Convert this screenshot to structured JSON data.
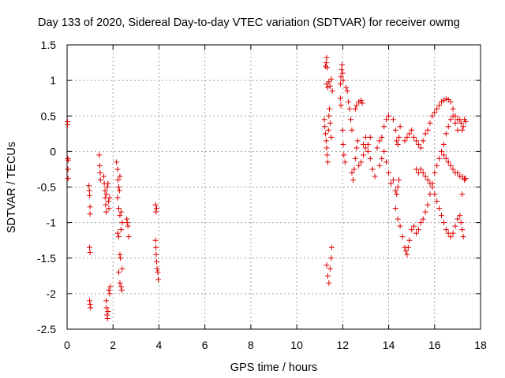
{
  "chart_data": {
    "type": "scatter",
    "title": "Day 133 of 2020, Sidereal Day-to-day VTEC variation (SDTVAR) for receiver owmg",
    "xlabel": "GPS time / hours",
    "ylabel": "SDTVAR / TECUs",
    "xlim": [
      0,
      18
    ],
    "ylim": [
      -2.5,
      1.5
    ],
    "xticks": [
      "0",
      "2",
      "4",
      "6",
      "8",
      "10",
      "12",
      "14",
      "16",
      "18"
    ],
    "yticks": [
      "1.5",
      "1",
      "0.5",
      "0",
      "-0.5",
      "-1",
      "-1.5",
      "-2",
      "-2.5"
    ],
    "grid": true,
    "marker": "+",
    "color": "#e00000",
    "series": [
      {
        "name": "SDTVAR",
        "points": [
          [
            0.02,
            0.42
          ],
          [
            0.02,
            0.38
          ],
          [
            0.03,
            -0.1
          ],
          [
            0.04,
            -0.25
          ],
          [
            0.04,
            -0.38
          ],
          [
            0.05,
            -0.12
          ],
          [
            0.95,
            -0.48
          ],
          [
            0.97,
            -0.55
          ],
          [
            0.98,
            -0.62
          ],
          [
            1.0,
            -0.78
          ],
          [
            1.0,
            -0.88
          ],
          [
            0.98,
            -1.35
          ],
          [
            1.0,
            -1.42
          ],
          [
            0.98,
            -2.1
          ],
          [
            1.0,
            -2.15
          ],
          [
            1.02,
            -2.2
          ],
          [
            1.4,
            -0.05
          ],
          [
            1.42,
            -0.2
          ],
          [
            1.44,
            -0.3
          ],
          [
            1.45,
            -0.4
          ],
          [
            1.6,
            -0.35
          ],
          [
            1.62,
            -0.45
          ],
          [
            1.65,
            -0.55
          ],
          [
            1.66,
            -0.65
          ],
          [
            1.68,
            -0.75
          ],
          [
            1.7,
            -0.85
          ],
          [
            1.72,
            -0.6
          ],
          [
            1.75,
            -0.5
          ],
          [
            1.78,
            -0.45
          ],
          [
            1.8,
            -0.7
          ],
          [
            1.82,
            -0.8
          ],
          [
            1.85,
            -0.65
          ],
          [
            1.7,
            -2.1
          ],
          [
            1.72,
            -2.2
          ],
          [
            1.74,
            -2.3
          ],
          [
            1.76,
            -2.35
          ],
          [
            1.78,
            -2.25
          ],
          [
            1.82,
            -1.95
          ],
          [
            1.85,
            -2.0
          ],
          [
            1.88,
            -1.9
          ],
          [
            2.15,
            -0.15
          ],
          [
            2.2,
            -0.25
          ],
          [
            2.22,
            -0.4
          ],
          [
            2.25,
            -0.5
          ],
          [
            2.28,
            -0.55
          ],
          [
            2.3,
            -0.35
          ],
          [
            2.2,
            -0.65
          ],
          [
            2.25,
            -0.8
          ],
          [
            2.3,
            -0.9
          ],
          [
            2.35,
            -0.85
          ],
          [
            2.2,
            -1.15
          ],
          [
            2.25,
            -1.2
          ],
          [
            2.3,
            -1.45
          ],
          [
            2.32,
            -1.5
          ],
          [
            2.25,
            -1.7
          ],
          [
            2.3,
            -1.85
          ],
          [
            2.35,
            -1.9
          ],
          [
            2.38,
            -1.95
          ],
          [
            2.4,
            -1.65
          ],
          [
            2.35,
            -1.1
          ],
          [
            2.4,
            -1.0
          ],
          [
            2.6,
            -0.95
          ],
          [
            2.62,
            -1.0
          ],
          [
            2.65,
            -1.05
          ],
          [
            2.68,
            -1.2
          ],
          [
            3.85,
            -0.75
          ],
          [
            3.87,
            -0.85
          ],
          [
            3.9,
            -0.8
          ],
          [
            3.85,
            -1.25
          ],
          [
            3.87,
            -1.35
          ],
          [
            3.88,
            -1.45
          ],
          [
            3.9,
            -1.55
          ],
          [
            3.92,
            -1.65
          ],
          [
            3.95,
            -1.7
          ],
          [
            3.97,
            -1.8
          ],
          [
            11.25,
            1.2
          ],
          [
            11.28,
            1.25
          ],
          [
            11.3,
            1.32
          ],
          [
            11.32,
            1.18
          ],
          [
            11.3,
            0.95
          ],
          [
            11.35,
            0.9
          ],
          [
            11.4,
            0.98
          ],
          [
            11.45,
            0.92
          ],
          [
            11.5,
            1.02
          ],
          [
            11.55,
            0.85
          ],
          [
            11.2,
            0.45
          ],
          [
            11.22,
            0.35
          ],
          [
            11.25,
            0.25
          ],
          [
            11.28,
            0.15
          ],
          [
            11.3,
            0.05
          ],
          [
            11.32,
            -0.05
          ],
          [
            11.35,
            -0.15
          ],
          [
            11.38,
            0.3
          ],
          [
            11.4,
            0.5
          ],
          [
            11.42,
            0.6
          ],
          [
            11.45,
            0.4
          ],
          [
            11.5,
            0.2
          ],
          [
            11.3,
            -1.6
          ],
          [
            11.35,
            -1.75
          ],
          [
            11.4,
            -1.85
          ],
          [
            11.45,
            -1.65
          ],
          [
            11.5,
            -1.5
          ],
          [
            11.52,
            -1.35
          ],
          [
            11.9,
            0.95
          ],
          [
            11.92,
            1.05
          ],
          [
            11.95,
            1.15
          ],
          [
            11.97,
            1.22
          ],
          [
            12.0,
            1.1
          ],
          [
            12.02,
            1.0
          ],
          [
            11.9,
            0.75
          ],
          [
            11.92,
            0.65
          ],
          [
            12.0,
            0.3
          ],
          [
            12.02,
            0.1
          ],
          [
            12.05,
            -0.05
          ],
          [
            12.1,
            -0.15
          ],
          [
            12.15,
            0.9
          ],
          [
            12.2,
            0.85
          ],
          [
            12.25,
            0.7
          ],
          [
            12.3,
            0.6
          ],
          [
            12.35,
            0.45
          ],
          [
            12.4,
            0.3
          ],
          [
            12.4,
            -0.3
          ],
          [
            12.45,
            -0.4
          ],
          [
            12.5,
            -0.25
          ],
          [
            12.55,
            -0.1
          ],
          [
            12.6,
            0.05
          ],
          [
            12.65,
            0.15
          ],
          [
            12.55,
            0.6
          ],
          [
            12.6,
            0.65
          ],
          [
            12.7,
            0.7
          ],
          [
            12.8,
            0.72
          ],
          [
            12.85,
            0.68
          ],
          [
            12.7,
            -0.2
          ],
          [
            12.8,
            -0.15
          ],
          [
            12.9,
            -0.05
          ],
          [
            13.0,
            0.05
          ],
          [
            13.1,
            0.1
          ],
          [
            13.2,
            0.2
          ],
          [
            12.9,
            0.1
          ],
          [
            13.0,
            0.2
          ],
          [
            13.1,
            0.0
          ],
          [
            13.2,
            -0.1
          ],
          [
            13.3,
            -0.25
          ],
          [
            13.4,
            -0.35
          ],
          [
            13.5,
            0.05
          ],
          [
            13.6,
            0.15
          ],
          [
            13.7,
            0.2
          ],
          [
            13.8,
            0.35
          ],
          [
            13.9,
            0.45
          ],
          [
            14.0,
            0.5
          ],
          [
            13.6,
            -0.2
          ],
          [
            13.7,
            -0.1
          ],
          [
            13.8,
            0.0
          ],
          [
            13.9,
            -0.15
          ],
          [
            14.0,
            -0.3
          ],
          [
            14.1,
            -0.45
          ],
          [
            14.2,
            0.45
          ],
          [
            14.3,
            0.3
          ],
          [
            14.35,
            0.15
          ],
          [
            14.4,
            0.1
          ],
          [
            14.45,
            0.2
          ],
          [
            14.5,
            0.35
          ],
          [
            14.2,
            -0.4
          ],
          [
            14.3,
            -0.55
          ],
          [
            14.35,
            -0.6
          ],
          [
            14.4,
            -0.5
          ],
          [
            14.45,
            -0.4
          ],
          [
            14.3,
            -0.8
          ],
          [
            14.4,
            -0.95
          ],
          [
            14.5,
            -1.05
          ],
          [
            14.6,
            -1.2
          ],
          [
            14.7,
            -1.35
          ],
          [
            14.75,
            -1.4
          ],
          [
            14.8,
            -1.45
          ],
          [
            14.85,
            -1.35
          ],
          [
            14.9,
            -1.25
          ],
          [
            15.0,
            -1.1
          ],
          [
            15.1,
            -1.05
          ],
          [
            15.2,
            -1.15
          ],
          [
            15.3,
            -1.1
          ],
          [
            15.4,
            -1.0
          ],
          [
            15.5,
            -0.95
          ],
          [
            15.6,
            -0.85
          ],
          [
            15.7,
            -0.75
          ],
          [
            15.8,
            -0.6
          ],
          [
            15.9,
            -0.45
          ],
          [
            16.0,
            -0.3
          ],
          [
            16.1,
            -0.2
          ],
          [
            16.2,
            -0.1
          ],
          [
            16.3,
            0.0
          ],
          [
            16.4,
            0.1
          ],
          [
            16.5,
            0.25
          ],
          [
            16.6,
            0.35
          ],
          [
            16.7,
            0.45
          ],
          [
            16.8,
            0.5
          ],
          [
            16.9,
            0.4
          ],
          [
            17.0,
            0.3
          ],
          [
            14.7,
            0.15
          ],
          [
            14.8,
            0.2
          ],
          [
            14.9,
            0.25
          ],
          [
            15.0,
            0.3
          ],
          [
            15.1,
            0.2
          ],
          [
            15.2,
            0.15
          ],
          [
            15.3,
            0.1
          ],
          [
            15.4,
            0.05
          ],
          [
            15.5,
            0.15
          ],
          [
            15.6,
            0.25
          ],
          [
            15.7,
            0.3
          ],
          [
            15.8,
            0.4
          ],
          [
            15.9,
            0.5
          ],
          [
            16.0,
            0.55
          ],
          [
            16.1,
            0.6
          ],
          [
            16.2,
            0.65
          ],
          [
            16.3,
            0.7
          ],
          [
            16.4,
            0.72
          ],
          [
            16.5,
            0.74
          ],
          [
            16.6,
            0.73
          ],
          [
            16.7,
            0.7
          ],
          [
            16.8,
            0.6
          ],
          [
            16.9,
            0.5
          ],
          [
            17.0,
            0.45
          ],
          [
            15.2,
            -0.25
          ],
          [
            15.3,
            -0.3
          ],
          [
            15.4,
            -0.25
          ],
          [
            15.5,
            -0.3
          ],
          [
            15.6,
            -0.35
          ],
          [
            15.7,
            -0.4
          ],
          [
            15.8,
            -0.45
          ],
          [
            15.9,
            -0.5
          ],
          [
            16.0,
            -0.6
          ],
          [
            16.1,
            -0.7
          ],
          [
            16.2,
            -0.8
          ],
          [
            16.3,
            -0.9
          ],
          [
            16.4,
            -1.0
          ],
          [
            16.5,
            -1.1
          ],
          [
            16.6,
            -1.15
          ],
          [
            16.7,
            -1.2
          ],
          [
            16.8,
            -1.15
          ],
          [
            16.9,
            -1.05
          ],
          [
            17.0,
            -0.95
          ],
          [
            17.1,
            -0.9
          ],
          [
            17.15,
            -1.0
          ],
          [
            17.2,
            -1.1
          ],
          [
            17.25,
            -1.2
          ],
          [
            17.2,
            -0.6
          ],
          [
            16.4,
            -0.05
          ],
          [
            16.5,
            -0.1
          ],
          [
            16.6,
            -0.15
          ],
          [
            16.7,
            -0.2
          ],
          [
            16.8,
            -0.25
          ],
          [
            16.9,
            -0.3
          ],
          [
            17.0,
            -0.3
          ],
          [
            17.1,
            -0.35
          ],
          [
            17.2,
            -0.35
          ],
          [
            17.3,
            -0.38
          ],
          [
            17.25,
            0.35
          ],
          [
            17.3,
            0.45
          ],
          [
            17.1,
            0.45
          ],
          [
            17.15,
            0.4
          ],
          [
            17.2,
            0.3
          ],
          [
            17.3,
            -0.4
          ],
          [
            17.35,
            -0.38
          ],
          [
            17.35,
            0.42
          ]
        ]
      }
    ]
  }
}
